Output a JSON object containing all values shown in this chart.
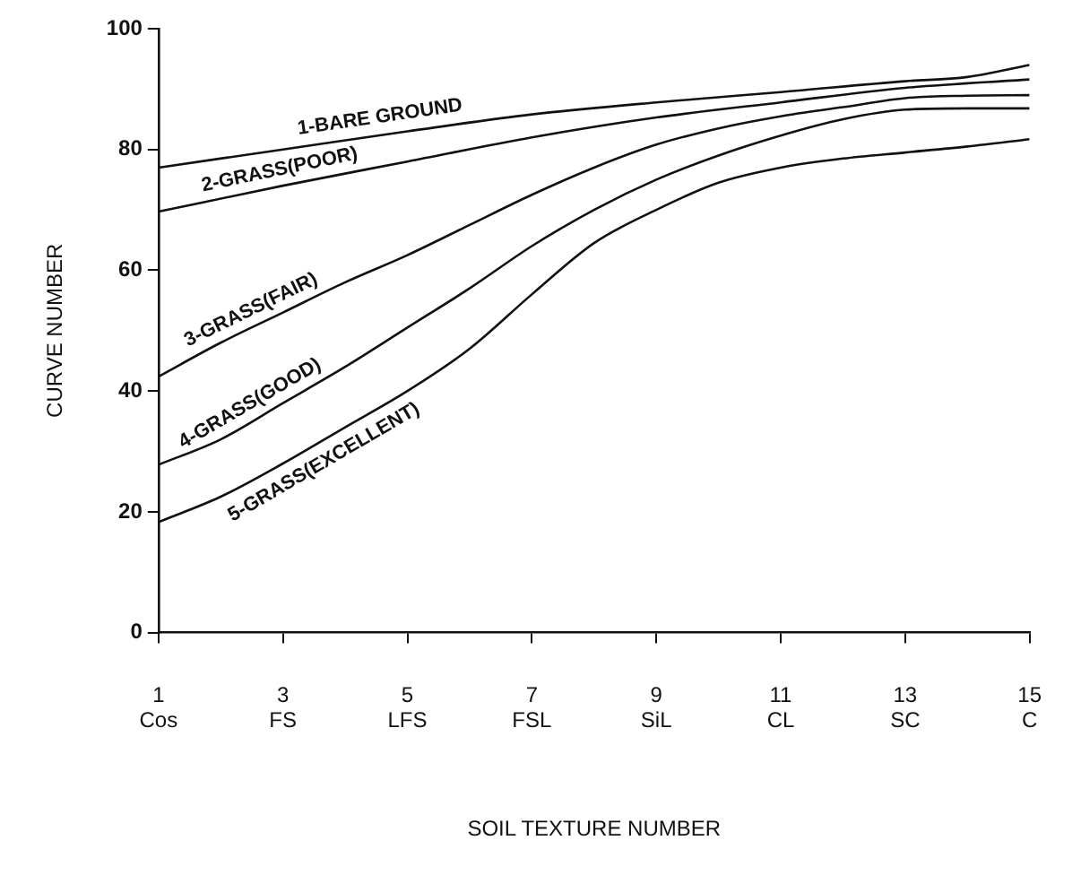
{
  "chart_data": {
    "type": "line",
    "xlabel": "SOIL TEXTURE NUMBER",
    "ylabel": "CURVE NUMBER",
    "xlim": [
      1,
      15
    ],
    "xticks": [
      {
        "value": 1,
        "label": "1\nCos"
      },
      {
        "value": 3,
        "label": "3\nFS"
      },
      {
        "value": 5,
        "label": "5\nLFS"
      },
      {
        "value": 7,
        "label": "7\nFSL"
      },
      {
        "value": 9,
        "label": "9\nSiL"
      },
      {
        "value": 11,
        "label": "11\nCL"
      },
      {
        "value": 13,
        "label": "13\nSC"
      },
      {
        "value": 15,
        "label": "15\nC"
      }
    ],
    "ylim": [
      0,
      100
    ],
    "yticks": [
      0,
      20,
      40,
      60,
      80,
      100
    ],
    "grid": false,
    "legend": false,
    "marker": "none",
    "line_style": "solid",
    "series": [
      {
        "name": "1-BARE GROUND",
        "color": "#111111",
        "x": [
          1,
          3,
          5,
          7,
          9,
          11,
          13,
          14,
          15
        ],
        "values": [
          77,
          80,
          83,
          85.8,
          87.8,
          89.5,
          91.3,
          92,
          94
        ]
      },
      {
        "name": "2-GRASS(POOR)",
        "color": "#111111",
        "x": [
          1,
          3,
          5,
          7,
          9,
          11,
          13,
          15
        ],
        "values": [
          69.7,
          74,
          78,
          82,
          85.3,
          87.8,
          90.2,
          91.6
        ]
      },
      {
        "name": "3-GRASS(FAIR)",
        "color": "#111111",
        "x": [
          1,
          2,
          3,
          4,
          5,
          6,
          7,
          8,
          9,
          10,
          11,
          12,
          13,
          14,
          15
        ],
        "values": [
          42.4,
          48,
          53,
          58,
          62.5,
          67.5,
          72.5,
          77,
          80.8,
          83.5,
          85.5,
          87,
          88.5,
          88.9,
          89
        ]
      },
      {
        "name": "4-GRASS(GOOD)",
        "color": "#111111",
        "x": [
          1,
          2,
          3,
          4,
          5,
          6,
          7,
          8,
          9,
          10,
          11,
          12,
          13,
          14,
          15
        ],
        "values": [
          27.8,
          32,
          38,
          44,
          50.5,
          57,
          64,
          70,
          75,
          79,
          82.3,
          85,
          86.6,
          86.8,
          86.8
        ]
      },
      {
        "name": "5-GRASS(EXCELLENT)",
        "color": "#111111",
        "x": [
          1,
          2,
          3,
          4,
          5,
          6,
          7,
          8,
          9,
          10,
          11,
          12,
          13,
          14,
          15
        ],
        "values": [
          18.3,
          22.5,
          28,
          34,
          40,
          47,
          56,
          64.5,
          70,
          74.5,
          77,
          78.5,
          79.5,
          80.5,
          81.7
        ]
      }
    ]
  }
}
